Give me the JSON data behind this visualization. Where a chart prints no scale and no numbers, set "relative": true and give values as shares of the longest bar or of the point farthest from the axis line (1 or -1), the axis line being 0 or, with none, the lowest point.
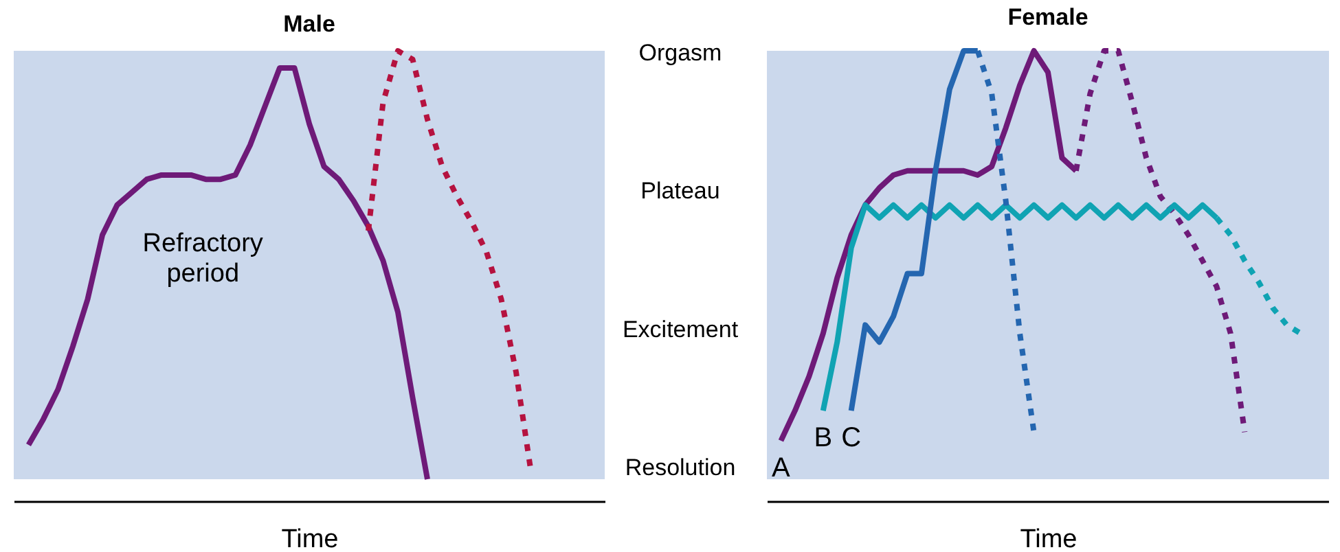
{
  "chart_data": [
    {
      "type": "line",
      "title": "Male",
      "xlabel": "Time",
      "relative": true,
      "categories": [
        null,
        null,
        null,
        null,
        null,
        null,
        null,
        null,
        null,
        null,
        null,
        null,
        null,
        null,
        null,
        null,
        null,
        null,
        null,
        null,
        null,
        null,
        null,
        null,
        null,
        null,
        null,
        null,
        null,
        null,
        null,
        null,
        null,
        null,
        null,
        null,
        null,
        null,
        null,
        null,
        null
      ],
      "annotations": [
        "Refractory period"
      ],
      "series": [
        {
          "color": "#6e1a78",
          "line_style": "solid",
          "values": [
            null,
            0.08,
            0.14,
            0.21,
            0.31,
            0.42,
            0.57,
            0.64,
            0.67,
            0.7,
            0.71,
            0.71,
            0.71,
            0.7,
            0.7,
            0.71,
            0.78,
            0.87,
            0.96,
            0.96,
            0.83,
            0.73,
            0.7,
            0.65,
            0.59,
            0.51,
            0.39,
            0.19,
            0,
            null,
            null,
            null,
            null,
            null,
            null,
            null,
            null,
            null,
            null,
            null,
            null
          ]
        },
        {
          "color": "#b5123f",
          "line_style": "dotted",
          "values": [
            null,
            null,
            null,
            null,
            null,
            null,
            null,
            null,
            null,
            null,
            null,
            null,
            null,
            null,
            null,
            null,
            null,
            null,
            null,
            null,
            null,
            null,
            null,
            null,
            0.58,
            0.88,
            1,
            0.98,
            0.84,
            0.73,
            0.66,
            0.6,
            0.53,
            0.42,
            0.25,
            0.02,
            null,
            null,
            null,
            null,
            null
          ]
        }
      ]
    },
    {
      "type": "line",
      "title": "Female",
      "xlabel": "Time",
      "relative": true,
      "categories": [
        null,
        null,
        null,
        null,
        null,
        null,
        null,
        null,
        null,
        null,
        null,
        null,
        null,
        null,
        null,
        null,
        null,
        null,
        null,
        null,
        null,
        null,
        null,
        null,
        null,
        null,
        null,
        null,
        null,
        null,
        null,
        null,
        null,
        null,
        null,
        null,
        null,
        null,
        null,
        null,
        null
      ],
      "annotations": [
        "Orgasm",
        "Plateau",
        "Excitement",
        "Resolution"
      ],
      "series": [
        {
          "name": "A",
          "color": "#6e1a78",
          "line_style": "solid",
          "values": [
            null,
            0.09,
            0.16,
            0.24,
            0.34,
            0.47,
            0.57,
            0.64,
            0.68,
            0.71,
            0.72,
            0.72,
            0.72,
            0.72,
            0.72,
            0.71,
            0.73,
            0.82,
            0.92,
            1,
            0.95,
            0.75,
            0.72,
            null,
            null,
            null,
            null,
            null,
            null,
            null,
            null,
            null,
            null,
            null,
            null,
            null,
            null,
            null,
            null,
            null,
            null
          ]
        },
        {
          "color": "#6e1a78",
          "line_style": "dotted",
          "values": [
            null,
            null,
            null,
            null,
            null,
            null,
            null,
            null,
            null,
            null,
            null,
            null,
            null,
            null,
            null,
            null,
            null,
            null,
            null,
            null,
            null,
            null,
            0.72,
            0.9,
            1,
            1,
            0.88,
            0.75,
            0.66,
            0.62,
            0.57,
            0.51,
            0.45,
            0.34,
            0.11,
            null,
            null,
            null,
            null,
            null,
            null
          ]
        },
        {
          "name": "B",
          "color": "#10a3b3",
          "line_style": "solid",
          "values": [
            null,
            null,
            null,
            null,
            0.16,
            0.32,
            0.54,
            0.64,
            0.61,
            0.64,
            0.61,
            0.64,
            0.61,
            0.64,
            0.61,
            0.64,
            0.61,
            0.64,
            0.61,
            0.64,
            0.61,
            0.64,
            0.61,
            0.64,
            0.61,
            0.64,
            0.61,
            0.64,
            0.61,
            0.64,
            0.61,
            0.64,
            0.61,
            null,
            null,
            null,
            null,
            null,
            null,
            null,
            null
          ]
        },
        {
          "color": "#10a3b3",
          "line_style": "dotted",
          "values": [
            null,
            null,
            null,
            null,
            null,
            null,
            null,
            null,
            null,
            null,
            null,
            null,
            null,
            null,
            null,
            null,
            null,
            null,
            null,
            null,
            null,
            null,
            null,
            null,
            null,
            null,
            null,
            null,
            null,
            null,
            null,
            null,
            0.61,
            0.57,
            0.51,
            0.46,
            0.4,
            0.36,
            0.34,
            null,
            null
          ]
        },
        {
          "name": "C",
          "color": "#2466b0",
          "line_style": "solid",
          "values": [
            null,
            null,
            null,
            null,
            null,
            null,
            0.16,
            0.36,
            0.32,
            0.38,
            0.48,
            0.48,
            0.72,
            0.91,
            1,
            1,
            null,
            null,
            null,
            null,
            null,
            null,
            null,
            null,
            null,
            null,
            null,
            null,
            null,
            null,
            null,
            null,
            null,
            null,
            null,
            null,
            null,
            null,
            null,
            null,
            null
          ]
        },
        {
          "color": "#2466b0",
          "line_style": "dotted",
          "values": [
            null,
            null,
            null,
            null,
            null,
            null,
            null,
            null,
            null,
            null,
            null,
            null,
            null,
            null,
            null,
            1,
            0.9,
            0.65,
            0.34,
            0.11,
            null,
            null,
            null,
            null,
            null,
            null,
            null,
            null,
            null,
            null,
            null,
            null,
            null,
            null,
            null,
            null,
            null,
            null,
            null,
            null,
            null
          ]
        }
      ]
    }
  ]
}
